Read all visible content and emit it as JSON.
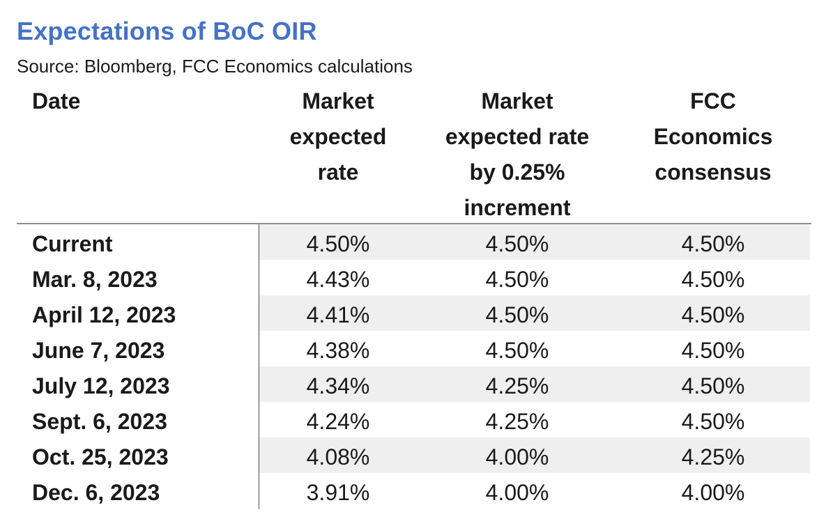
{
  "title": "Expectations of BoC OIR",
  "source": "Source: Bloomberg, FCC Economics calculations",
  "columns": [
    "Date",
    "Market\nexpected\nrate",
    "Market\nexpected rate\nby 0.25%\nincrement",
    "FCC\nEconomics\nconsensus"
  ],
  "rows": [
    {
      "date": "Current",
      "market_expected": "4.50%",
      "market_increment": "4.50%",
      "fcc_consensus": "4.50%"
    },
    {
      "date": "Mar. 8, 2023",
      "market_expected": "4.43%",
      "market_increment": "4.50%",
      "fcc_consensus": "4.50%"
    },
    {
      "date": "April 12, 2023",
      "market_expected": "4.41%",
      "market_increment": "4.50%",
      "fcc_consensus": "4.50%"
    },
    {
      "date": "June 7, 2023",
      "market_expected": "4.38%",
      "market_increment": "4.50%",
      "fcc_consensus": "4.50%"
    },
    {
      "date": "July 12, 2023",
      "market_expected": "4.34%",
      "market_increment": "4.25%",
      "fcc_consensus": "4.50%"
    },
    {
      "date": "Sept. 6, 2023",
      "market_expected": "4.24%",
      "market_increment": "4.25%",
      "fcc_consensus": "4.50%"
    },
    {
      "date": "Oct. 25, 2023",
      "market_expected": "4.08%",
      "market_increment": "4.00%",
      "fcc_consensus": "4.25%"
    },
    {
      "date": "Dec. 6, 2023",
      "market_expected": "3.91%",
      "market_increment": "4.00%",
      "fcc_consensus": "4.00%"
    }
  ],
  "colors": {
    "title": "#4472c4",
    "shaded_row": "#efefef",
    "text": "#1a1a1a"
  }
}
